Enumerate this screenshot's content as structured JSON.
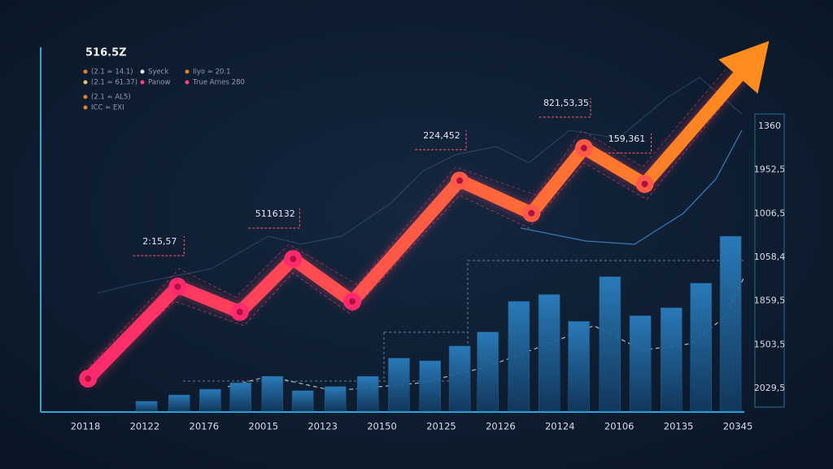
{
  "chart_data": {
    "type": "line",
    "title": "516.5Z",
    "legend": [
      {
        "label": "(2.1 ≈ 14.1)",
        "color": "#e0832f"
      },
      {
        "label": "Syeck",
        "color": "#e8e8e8"
      },
      {
        "label": "Iiyo ≈ 20.1",
        "color": "#e0832f"
      },
      {
        "label": "(2.1 ≈ 61.37)",
        "color": "#e8c070"
      },
      {
        "label": "Panow",
        "color": "#ff3f7a"
      },
      {
        "label": "True Arnes 280",
        "color": "#ff3f7a"
      },
      {
        "label": "(2.1 ≈ AL5)",
        "color": "#e0832f"
      },
      {
        "label": "ICC ≈ EXI",
        "color": "#e0832f"
      }
    ],
    "categories": [
      "20118",
      "20122",
      "20176",
      "20015",
      "20123",
      "20150",
      "20125",
      "20126",
      "20124",
      "20106",
      "20135",
      "20345"
    ],
    "right_labels": [
      "1360",
      "1952,5",
      "1006,5",
      "1058,4",
      "1859,5",
      "1503,5",
      "2029,5"
    ],
    "xlim": [
      0,
      100
    ],
    "ylim": [
      0,
      100
    ],
    "line": {
      "color_start": "#ff2a6d",
      "color_end": "#ff8c1e",
      "x": [
        6.4,
        18.5,
        26.9,
        34.1,
        42.1,
        56.6,
        66.3,
        73.4,
        81.6,
        98.4
      ],
      "values": [
        8.6,
        32.9,
        26.2,
        40.2,
        29.0,
        60.9,
        52.3,
        69.5,
        60.0,
        97.8
      ],
      "value_labels": [
        null,
        "2:15,57",
        null,
        "5116132",
        null,
        "224,452",
        null,
        "821,53,35",
        "159,361",
        null
      ]
    },
    "bars": {
      "color": "#1d5f95",
      "x": [
        14.3,
        18.7,
        22.9,
        27.0,
        31.3,
        35.4,
        39.8,
        44.2,
        48.4,
        52.6,
        56.6,
        60.4,
        64.6,
        68.7,
        72.7,
        76.9,
        81.0,
        85.2,
        89.2,
        93.2
      ],
      "values": [
        2.6,
        4.3,
        5.8,
        7.5,
        9.2,
        5.4,
        6.5,
        9.2,
        14.0,
        13.3,
        17.2,
        20.9,
        29.0,
        30.8,
        23.7,
        35.5,
        25.2,
        27.3,
        33.8,
        46.2
      ]
    }
  }
}
